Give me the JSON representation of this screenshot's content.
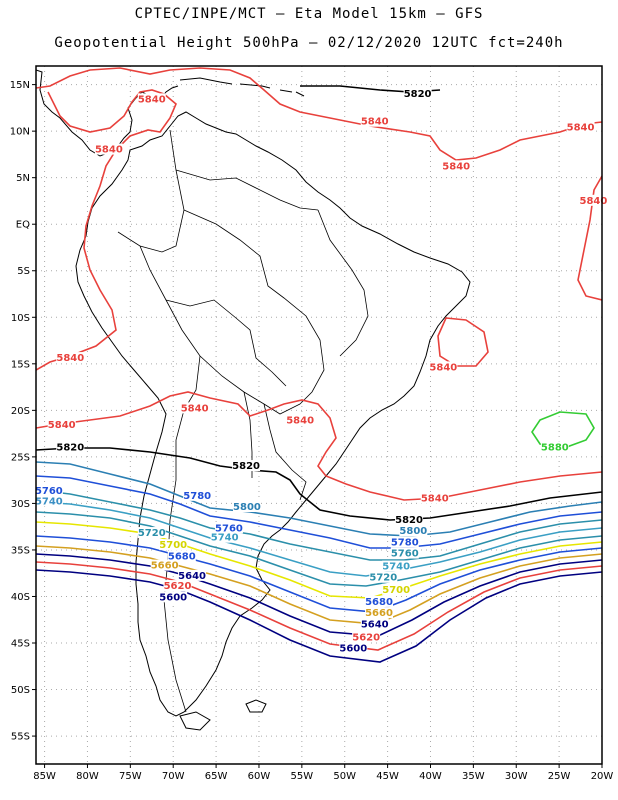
{
  "title": {
    "line1": "CPTEC/INPE/MCT –  Eta Model 15km – GFS",
    "line2": "Geopotential Height 500hPa – 02/12/2020 12UTC fct=240h"
  },
  "axes": {
    "lat_labels": [
      "15N",
      "10N",
      "5N",
      "EQ",
      "5S",
      "10S",
      "15S",
      "20S",
      "25S",
      "30S",
      "35S",
      "40S",
      "45S",
      "50S",
      "55S"
    ],
    "lat_values": [
      15,
      10,
      5,
      0,
      -5,
      -10,
      -15,
      -20,
      -25,
      -30,
      -35,
      -40,
      -45,
      -50,
      -55
    ],
    "lon_labels": [
      "85W",
      "80W",
      "75W",
      "70W",
      "65W",
      "60W",
      "55W",
      "50W",
      "45W",
      "40W",
      "35W",
      "30W",
      "25W",
      "20W"
    ],
    "lon_values": [
      -85,
      -80,
      -75,
      -70,
      -65,
      -60,
      -55,
      -50,
      -45,
      -40,
      -35,
      -30,
      -25,
      -20
    ],
    "lon_range": [
      -86,
      -20
    ],
    "lat_range": [
      -58,
      17
    ]
  },
  "contour_labels": [
    {
      "text": "5840",
      "lon": -72.5,
      "lat": 13.2,
      "color": "#e8413c"
    },
    {
      "text": "5820",
      "lon": -41.5,
      "lat": 13.8,
      "color": "#000000"
    },
    {
      "text": "5840",
      "lon": -46.5,
      "lat": 10.8,
      "color": "#e8413c"
    },
    {
      "text": "5840",
      "lon": -22.5,
      "lat": 10.2,
      "color": "#e8413c"
    },
    {
      "text": "5840",
      "lon": -77.5,
      "lat": 7.8,
      "color": "#e8413c"
    },
    {
      "text": "5840",
      "lon": -37.0,
      "lat": 6.0,
      "color": "#e8413c"
    },
    {
      "text": "5840",
      "lon": -21.0,
      "lat": 2.3,
      "color": "#e8413c"
    },
    {
      "text": "5840",
      "lon": -38.5,
      "lat": -15.6,
      "color": "#e8413c"
    },
    {
      "text": "5840",
      "lon": -82.0,
      "lat": -14.6,
      "color": "#e8413c"
    },
    {
      "text": "5840",
      "lon": -67.5,
      "lat": -20.0,
      "color": "#e8413c"
    },
    {
      "text": "5840",
      "lon": -83.0,
      "lat": -21.8,
      "color": "#e8413c"
    },
    {
      "text": "5840",
      "lon": -55.2,
      "lat": -21.3,
      "color": "#e8413c"
    },
    {
      "text": "5880",
      "lon": -25.5,
      "lat": -24.2,
      "color": "#33cc33"
    },
    {
      "text": "5820",
      "lon": -82.0,
      "lat": -24.2,
      "color": "#000000"
    },
    {
      "text": "5820",
      "lon": -61.5,
      "lat": -26.2,
      "color": "#000000"
    },
    {
      "text": "5840",
      "lon": -39.5,
      "lat": -29.7,
      "color": "#e8413c"
    },
    {
      "text": "5760",
      "lon": -84.5,
      "lat": -28.9,
      "color": "#1f4fd8"
    },
    {
      "text": "5740",
      "lon": -84.5,
      "lat": -30.0,
      "color": "#3a8fc4"
    },
    {
      "text": "5780",
      "lon": -67.2,
      "lat": -29.4,
      "color": "#1f4fd8"
    },
    {
      "text": "5800",
      "lon": -61.4,
      "lat": -30.6,
      "color": "#2b7fb3"
    },
    {
      "text": "5820",
      "lon": -42.5,
      "lat": -32.0,
      "color": "#000000"
    },
    {
      "text": "5800",
      "lon": -42.0,
      "lat": -33.2,
      "color": "#2b7fb3"
    },
    {
      "text": "5780",
      "lon": -43.0,
      "lat": -34.4,
      "color": "#1f4fd8"
    },
    {
      "text": "5760",
      "lon": -43.0,
      "lat": -35.6,
      "color": "#2b8faa"
    },
    {
      "text": "5740",
      "lon": -44.0,
      "lat": -37.0,
      "color": "#3a9fc4"
    },
    {
      "text": "5720",
      "lon": -45.5,
      "lat": -38.2,
      "color": "#2b8faa"
    },
    {
      "text": "5700",
      "lon": -44.0,
      "lat": -39.5,
      "color": "#d4d400"
    },
    {
      "text": "5680",
      "lon": -46.0,
      "lat": -40.8,
      "color": "#1f4fd8"
    },
    {
      "text": "5660",
      "lon": -46.0,
      "lat": -42.0,
      "color": "#d4a020"
    },
    {
      "text": "5640",
      "lon": -46.5,
      "lat": -43.2,
      "color": "#000080"
    },
    {
      "text": "5620",
      "lon": -47.5,
      "lat": -44.6,
      "color": "#e8413c"
    },
    {
      "text": "5600",
      "lon": -49.0,
      "lat": -45.8,
      "color": "#000080"
    },
    {
      "text": "5760",
      "lon": -63.5,
      "lat": -32.9,
      "color": "#1f4fd8"
    },
    {
      "text": "5740",
      "lon": -64.0,
      "lat": -33.9,
      "color": "#3a9fc4"
    },
    {
      "text": "5720",
      "lon": -72.5,
      "lat": -33.4,
      "color": "#2b8faa"
    },
    {
      "text": "5700",
      "lon": -70.0,
      "lat": -34.7,
      "color": "#d4d400"
    },
    {
      "text": "5680",
      "lon": -69.0,
      "lat": -35.9,
      "color": "#1f4fd8"
    },
    {
      "text": "5660",
      "lon": -71.0,
      "lat": -36.9,
      "color": "#d4a020"
    },
    {
      "text": "5640",
      "lon": -67.8,
      "lat": -38.0,
      "color": "#000080"
    },
    {
      "text": "5620",
      "lon": -69.5,
      "lat": -39.1,
      "color": "#e8413c"
    },
    {
      "text": "5600",
      "lon": -70.0,
      "lat": -40.3,
      "color": "#000080"
    }
  ],
  "colors": {
    "h5840": "#e8413c",
    "h5820": "#000000",
    "h5880": "#33cc33"
  }
}
